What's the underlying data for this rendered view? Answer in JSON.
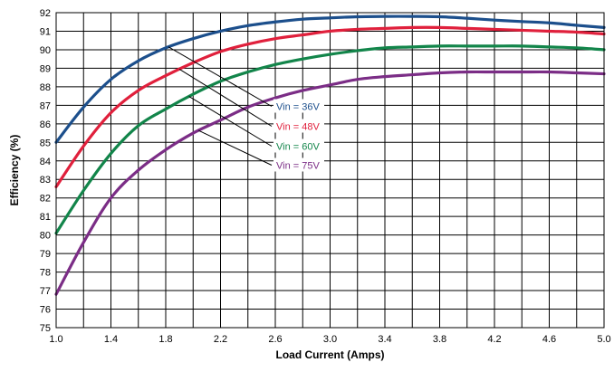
{
  "chart_data": {
    "type": "line",
    "xlabel": "Load Current (Amps)",
    "ylabel": "Efficiency (%)",
    "xlim": [
      1.0,
      5.0
    ],
    "ylim": [
      75,
      92
    ],
    "x_ticks": [
      1.0,
      1.4,
      1.8,
      2.2,
      2.6,
      3.0,
      3.4,
      3.8,
      4.2,
      4.6,
      5.0
    ],
    "x_tick_labels": [
      "1.0",
      "1.4",
      "1.8",
      "2.2",
      "2.6",
      "3.0",
      "3.4",
      "3.8",
      "4.2",
      "4.6",
      "5.0"
    ],
    "y_ticks": [
      75,
      76,
      77,
      78,
      79,
      80,
      81,
      82,
      83,
      84,
      85,
      86,
      87,
      88,
      89,
      90,
      91,
      92
    ],
    "y_tick_labels": [
      "75",
      "76",
      "77",
      "78",
      "79",
      "80",
      "81",
      "82",
      "83",
      "84",
      "85",
      "86",
      "87",
      "88",
      "89",
      "90",
      "91",
      "92"
    ],
    "grid": true,
    "x_grid_step": 0.2,
    "y_grid_step": 1,
    "legend": "inline-callouts",
    "series": [
      {
        "name": "Vin = 36V",
        "color": "#1c4f8c",
        "x": [
          1.0,
          1.2,
          1.4,
          1.6,
          1.8,
          2.0,
          2.2,
          2.4,
          2.6,
          2.8,
          3.0,
          3.2,
          3.4,
          3.6,
          3.8,
          4.0,
          4.2,
          4.4,
          4.6,
          4.8,
          5.0
        ],
        "y": [
          85.0,
          86.9,
          88.4,
          89.4,
          90.1,
          90.6,
          91.0,
          91.3,
          91.5,
          91.65,
          91.72,
          91.78,
          91.8,
          91.8,
          91.78,
          91.7,
          91.6,
          91.52,
          91.45,
          91.32,
          91.2
        ]
      },
      {
        "name": "Vin = 48V",
        "color": "#e0203c",
        "x": [
          1.0,
          1.2,
          1.4,
          1.6,
          1.8,
          2.0,
          2.2,
          2.4,
          2.6,
          2.8,
          3.0,
          3.2,
          3.4,
          3.6,
          3.8,
          4.0,
          4.2,
          4.4,
          4.6,
          4.8,
          5.0
        ],
        "y": [
          82.6,
          84.8,
          86.6,
          87.8,
          88.6,
          89.3,
          89.9,
          90.3,
          90.6,
          90.8,
          91.0,
          91.1,
          91.15,
          91.2,
          91.2,
          91.15,
          91.1,
          91.05,
          91.0,
          90.95,
          90.85
        ]
      },
      {
        "name": "Vin = 60V",
        "color": "#12854a",
        "x": [
          1.0,
          1.2,
          1.4,
          1.6,
          1.8,
          2.0,
          2.2,
          2.4,
          2.6,
          2.8,
          3.0,
          3.2,
          3.4,
          3.6,
          3.8,
          4.0,
          4.2,
          4.4,
          4.6,
          4.8,
          5.0
        ],
        "y": [
          80.1,
          82.4,
          84.4,
          85.9,
          86.8,
          87.6,
          88.3,
          88.8,
          89.2,
          89.5,
          89.75,
          89.95,
          90.1,
          90.15,
          90.2,
          90.2,
          90.2,
          90.2,
          90.15,
          90.1,
          90.0
        ]
      },
      {
        "name": "Vin = 75V",
        "color": "#7b2d86",
        "x": [
          1.0,
          1.2,
          1.4,
          1.6,
          1.8,
          2.0,
          2.2,
          2.4,
          2.6,
          2.8,
          3.0,
          3.2,
          3.4,
          3.6,
          3.8,
          4.0,
          4.2,
          4.4,
          4.6,
          4.8,
          5.0
        ],
        "y": [
          76.8,
          79.6,
          82.0,
          83.5,
          84.6,
          85.5,
          86.2,
          86.9,
          87.4,
          87.8,
          88.1,
          88.4,
          88.55,
          88.65,
          88.75,
          88.8,
          88.8,
          88.8,
          88.8,
          88.75,
          88.7
        ]
      }
    ]
  }
}
